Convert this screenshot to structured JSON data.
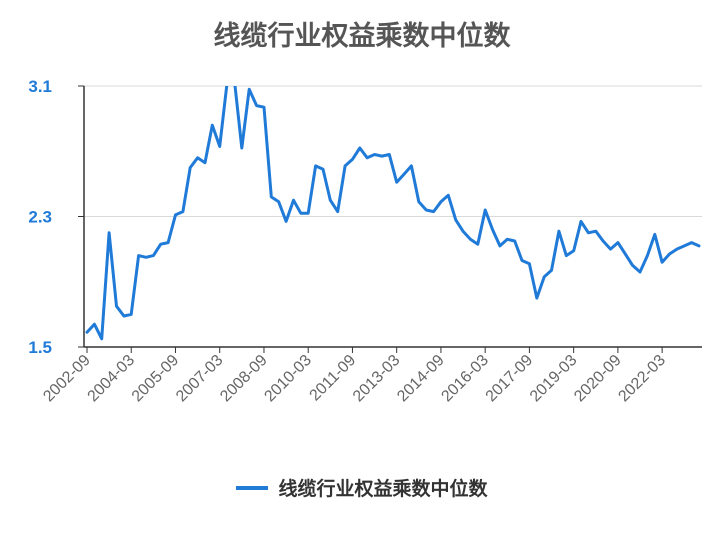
{
  "chart_data": {
    "type": "line",
    "title": "线缆行业权益乘数中位数",
    "xlabel": "",
    "ylabel": "",
    "ylim": [
      1.5,
      3.1
    ],
    "yticks": [
      "1.5",
      "2.3",
      "3.1"
    ],
    "xtick_labels": [
      "2002-09",
      "2004-03",
      "2005-09",
      "2007-03",
      "2008-09",
      "2010-03",
      "2011-09",
      "2013-03",
      "2014-09",
      "2016-03",
      "2017-09",
      "2019-03",
      "2020-09",
      "2022-03"
    ],
    "x": [
      "2002-09",
      "2002-12",
      "2003-03",
      "2003-06",
      "2003-09",
      "2003-12",
      "2004-03",
      "2004-06",
      "2004-09",
      "2004-12",
      "2005-03",
      "2005-06",
      "2005-09",
      "2005-12",
      "2006-03",
      "2006-06",
      "2006-09",
      "2006-12",
      "2007-03",
      "2007-06",
      "2007-09",
      "2007-12",
      "2008-03",
      "2008-06",
      "2008-09",
      "2008-12",
      "2009-03",
      "2009-06",
      "2009-09",
      "2009-12",
      "2010-03",
      "2010-06",
      "2010-09",
      "2010-12",
      "2011-03",
      "2011-06",
      "2011-09",
      "2011-12",
      "2012-03",
      "2012-06",
      "2012-09",
      "2012-12",
      "2013-03",
      "2013-06",
      "2013-09",
      "2013-12",
      "2014-03",
      "2014-06",
      "2014-09",
      "2014-12",
      "2015-03",
      "2015-06",
      "2015-09",
      "2015-12",
      "2016-03",
      "2016-06",
      "2016-09",
      "2016-12",
      "2017-03",
      "2017-06",
      "2017-09",
      "2017-12",
      "2018-03",
      "2018-06",
      "2018-09",
      "2018-12",
      "2019-03",
      "2019-06",
      "2019-09",
      "2019-12",
      "2020-03",
      "2020-06",
      "2020-09",
      "2020-12",
      "2021-03",
      "2021-06",
      "2021-09",
      "2021-12",
      "2022-03",
      "2022-06",
      "2022-09",
      "2022-12",
      "2023-03",
      "2023-06"
    ],
    "series": [
      {
        "name": "线缆行业权益乘数中位数",
        "color": "#1f7ad8",
        "values": [
          1.59,
          1.64,
          1.55,
          2.2,
          1.75,
          1.69,
          1.7,
          2.06,
          2.05,
          2.06,
          2.13,
          2.14,
          2.31,
          2.33,
          2.6,
          2.66,
          2.63,
          2.86,
          2.73,
          3.12,
          3.13,
          2.72,
          3.08,
          2.98,
          2.97,
          2.42,
          2.39,
          2.27,
          2.4,
          2.32,
          2.32,
          2.61,
          2.59,
          2.4,
          2.33,
          2.61,
          2.65,
          2.72,
          2.66,
          2.68,
          2.67,
          2.68,
          2.51,
          2.56,
          2.61,
          2.39,
          2.34,
          2.33,
          2.39,
          2.43,
          2.28,
          2.21,
          2.16,
          2.13,
          2.34,
          2.22,
          2.12,
          2.16,
          2.15,
          2.03,
          2.01,
          1.8,
          1.93,
          1.97,
          2.21,
          2.06,
          2.09,
          2.27,
          2.2,
          2.21,
          2.15,
          2.1,
          2.14,
          2.07,
          2.0,
          1.96,
          2.06,
          2.19,
          2.02,
          2.07,
          2.1,
          2.12,
          2.14,
          2.12
        ]
      }
    ],
    "grid": true,
    "legend": "bottom"
  }
}
